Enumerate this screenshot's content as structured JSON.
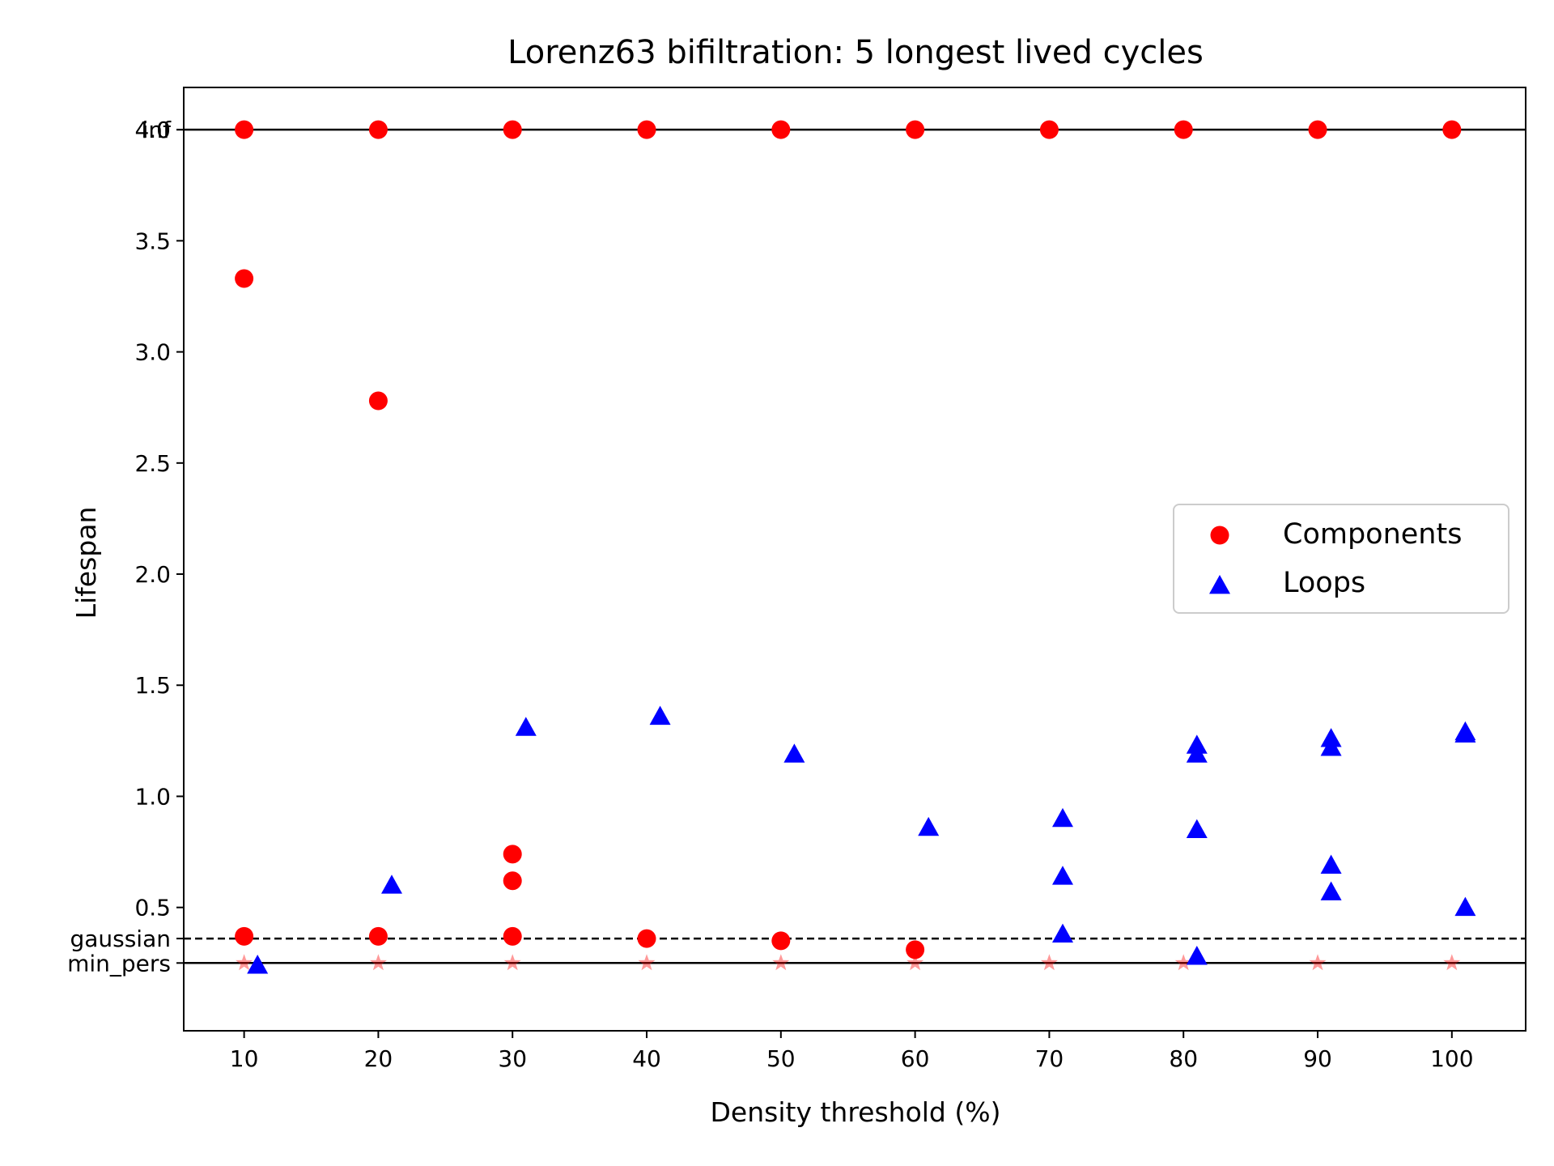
{
  "chart_data": {
    "type": "scatter",
    "title": "Lorenz63 bifiltration: 5 longest lived cycles",
    "xlabel": "Density threshold (%)",
    "ylabel": "Lifespan",
    "xlim": [
      5.5,
      105.5
    ],
    "ylim": [
      -0.055,
      4.19
    ],
    "x_ticks": [
      10,
      20,
      30,
      40,
      50,
      60,
      70,
      80,
      90,
      100
    ],
    "y_ticks": [
      0.5,
      1.0,
      1.5,
      2.0,
      2.5,
      3.0,
      3.5,
      4.0
    ],
    "y_tick_labels": [
      "0.5",
      "1.0",
      "1.5",
      "2.0",
      "2.5",
      "3.0",
      "3.5",
      "4.0"
    ],
    "reference_lines": [
      {
        "label": "inf",
        "y": 4.0,
        "style": "solid"
      },
      {
        "label": "gaussian",
        "y": 0.36,
        "style": "dashed"
      },
      {
        "label": "min_pers",
        "y": 0.25,
        "style": "solid"
      }
    ],
    "legend": {
      "position": "center-right",
      "entries": [
        "Components",
        "Loops"
      ]
    },
    "series": [
      {
        "name": "Components",
        "marker": "circle",
        "color": "#ff0000",
        "points": [
          [
            10,
            4.0
          ],
          [
            20,
            4.0
          ],
          [
            30,
            4.0
          ],
          [
            40,
            4.0
          ],
          [
            50,
            4.0
          ],
          [
            60,
            4.0
          ],
          [
            70,
            4.0
          ],
          [
            80,
            4.0
          ],
          [
            90,
            4.0
          ],
          [
            100,
            4.0
          ],
          [
            10,
            3.33
          ],
          [
            20,
            2.78
          ],
          [
            30,
            0.74
          ],
          [
            30,
            0.62
          ],
          [
            10,
            0.37
          ],
          [
            20,
            0.37
          ],
          [
            30,
            0.37
          ],
          [
            40,
            0.36
          ],
          [
            50,
            0.35
          ],
          [
            60,
            0.31
          ]
        ]
      },
      {
        "name": "Loops",
        "marker": "triangle",
        "color": "#0000ff",
        "points": [
          [
            11,
            0.24
          ],
          [
            21,
            0.6
          ],
          [
            31,
            1.31
          ],
          [
            41,
            1.36
          ],
          [
            51,
            1.19
          ],
          [
            61,
            0.86
          ],
          [
            71,
            0.9
          ],
          [
            71,
            0.64
          ],
          [
            71,
            0.38
          ],
          [
            81,
            1.23
          ],
          [
            81,
            1.19
          ],
          [
            81,
            0.85
          ],
          [
            81,
            0.28
          ],
          [
            91,
            1.26
          ],
          [
            91,
            1.22
          ],
          [
            91,
            0.69
          ],
          [
            91,
            0.57
          ],
          [
            101,
            1.29
          ],
          [
            101,
            1.28
          ],
          [
            101,
            0.5
          ]
        ]
      },
      {
        "marker": "star",
        "color": "#ff0000",
        "alpha": 0.4,
        "points": [
          [
            10,
            0.25
          ],
          [
            20,
            0.25
          ],
          [
            30,
            0.25
          ],
          [
            40,
            0.25
          ],
          [
            50,
            0.25
          ],
          [
            60,
            0.25
          ],
          [
            70,
            0.25
          ],
          [
            80,
            0.25
          ],
          [
            90,
            0.25
          ],
          [
            100,
            0.25
          ]
        ]
      }
    ]
  }
}
